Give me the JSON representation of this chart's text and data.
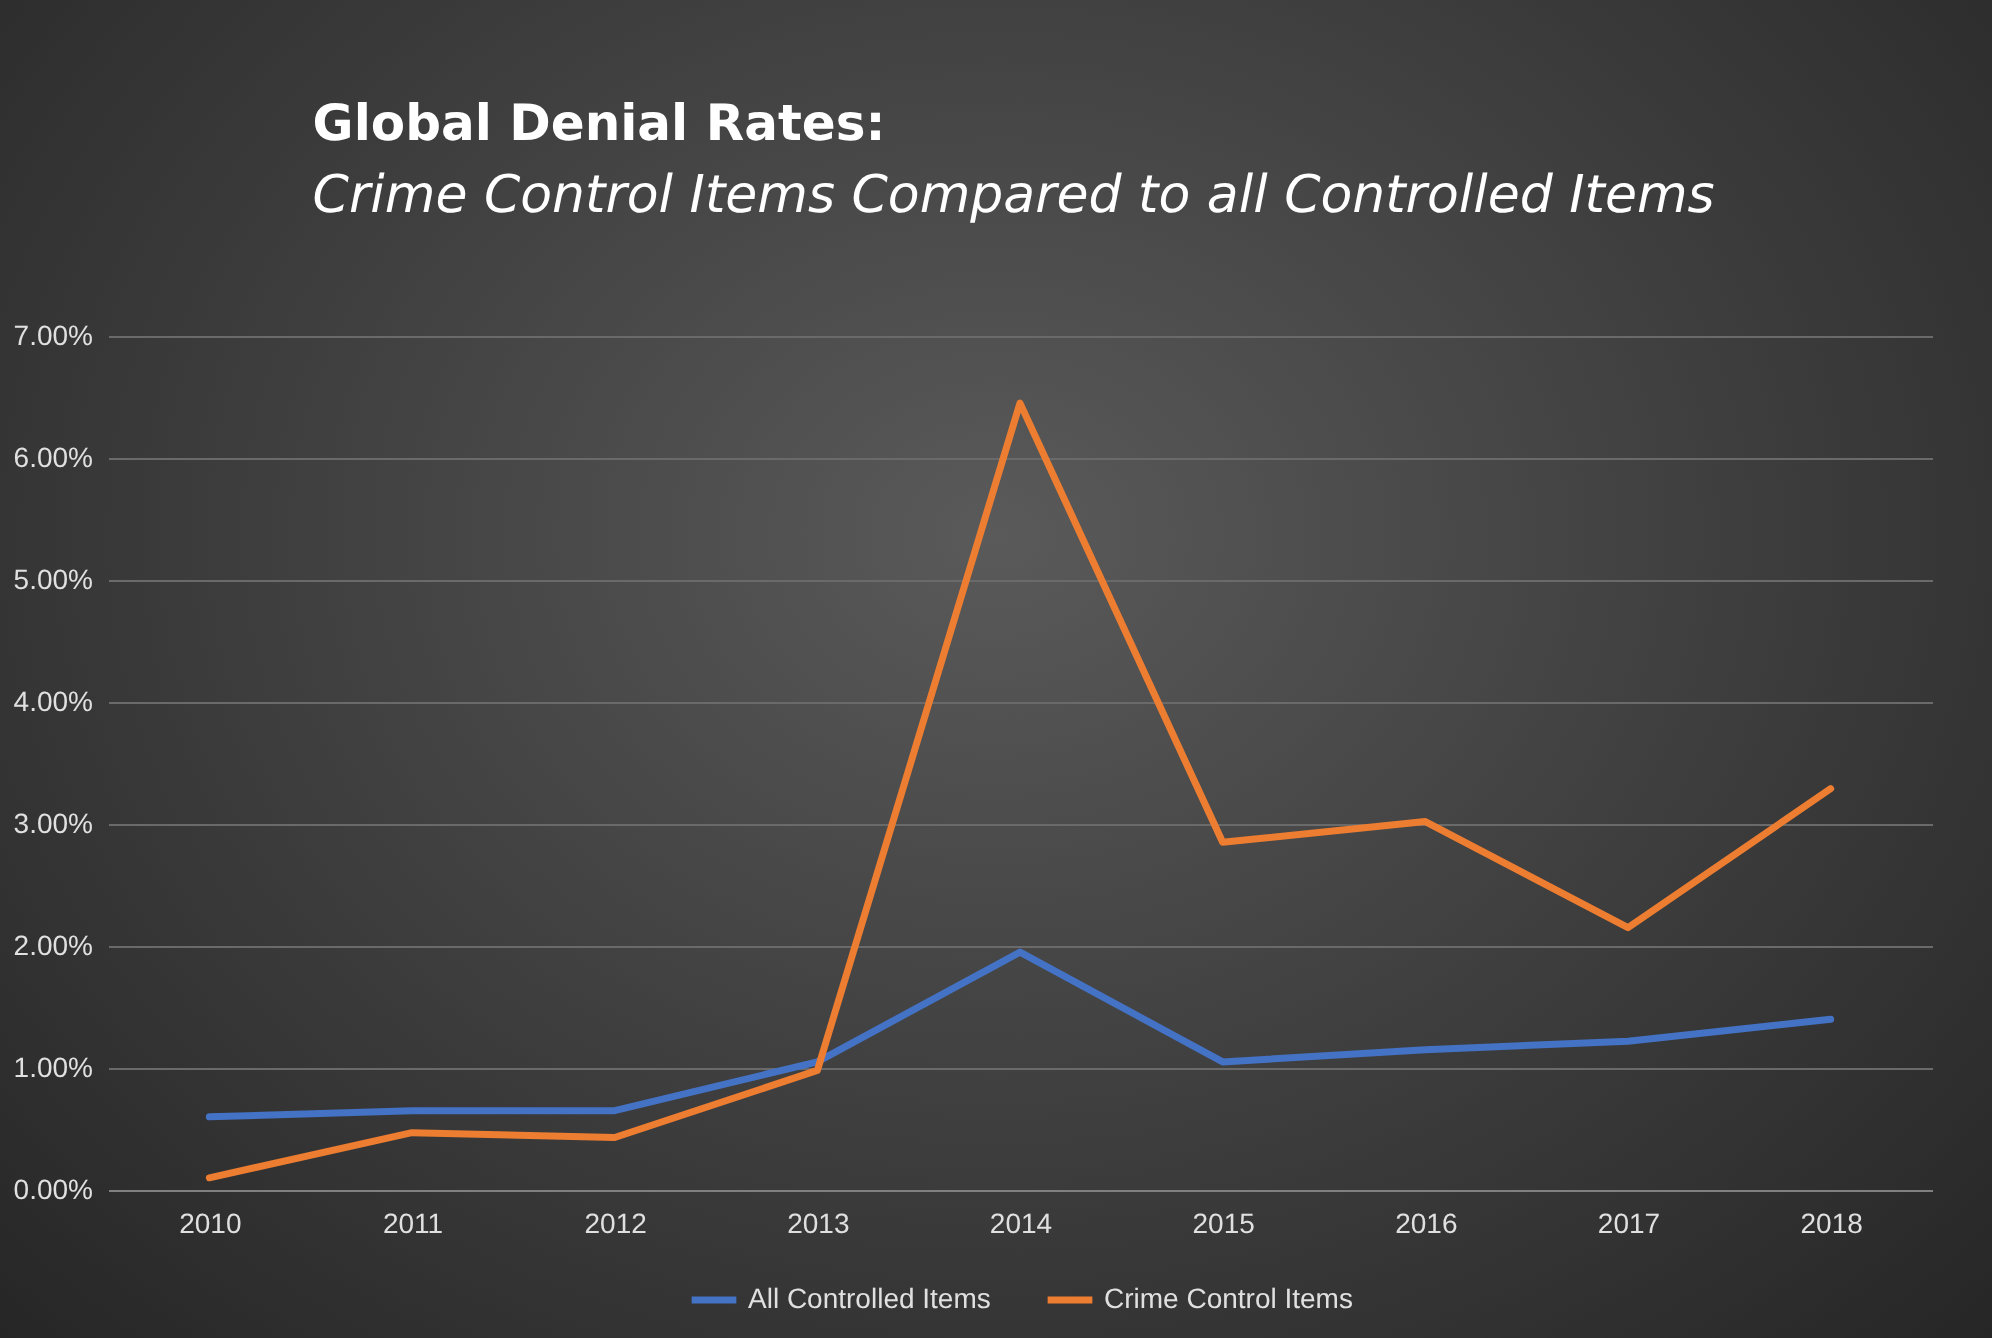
{
  "chart_data": {
    "type": "line",
    "title": "Global Denial Rates:",
    "subtitle": "Crime Control Items Compared to all Controlled Items",
    "categories": [
      "2010",
      "2011",
      "2012",
      "2013",
      "2014",
      "2015",
      "2016",
      "2017",
      "2018"
    ],
    "series": [
      {
        "name": "All Controlled Items",
        "color": "#4472c4",
        "values": [
          0.6,
          0.65,
          0.65,
          1.05,
          1.95,
          1.05,
          1.15,
          1.22,
          1.4
        ]
      },
      {
        "name": "Crime Control Items",
        "color": "#ed7d31",
        "values": [
          0.1,
          0.47,
          0.43,
          0.98,
          6.45,
          2.85,
          3.02,
          2.15,
          3.29
        ]
      }
    ],
    "ylim": [
      0,
      7
    ],
    "yticks": [
      {
        "value": 0,
        "label": "0.00%"
      },
      {
        "value": 1,
        "label": "1.00%"
      },
      {
        "value": 2,
        "label": "2.00%"
      },
      {
        "value": 3,
        "label": "3.00%"
      },
      {
        "value": 4,
        "label": "4.00%"
      },
      {
        "value": 5,
        "label": "5.00%"
      },
      {
        "value": 6,
        "label": "6.00%"
      },
      {
        "value": 7,
        "label": "7.00%"
      }
    ],
    "grid": "y",
    "legend": "bottom",
    "marker": "none",
    "line_style": "solid"
  }
}
